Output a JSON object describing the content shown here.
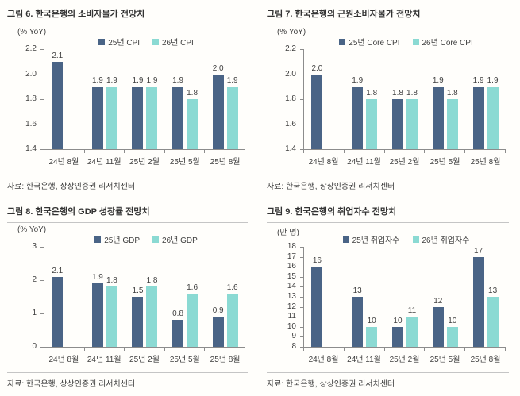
{
  "page": {
    "background": "#fffefb"
  },
  "colors": {
    "series_2025": "#4a6486",
    "series_2026": "#8bdad3",
    "axis": "#8c8c8c",
    "text": "#3f3f3f",
    "title_text": "#333333",
    "rule": "#c5c5c5"
  },
  "chart_data": [
    {
      "type": "bar",
      "figure_label": "그림 6. 한국은행의 소비자물가 전망치",
      "unit_label": "(% YoY)",
      "categories": [
        "24년 8월",
        "24년 11월",
        "25년 2월",
        "25년 5월",
        "25년 8월"
      ],
      "series": [
        {
          "name": "25년 CPI",
          "color": "#4a6486",
          "values": [
            2.1,
            1.9,
            1.9,
            1.9,
            2.0
          ],
          "labels": [
            "2.1",
            "1.9",
            "1.9",
            "1.9",
            "2.0"
          ]
        },
        {
          "name": "26년 CPI",
          "color": "#8bdad3",
          "values": [
            null,
            1.9,
            1.9,
            1.8,
            1.9
          ],
          "labels": [
            null,
            "1.9",
            "1.9",
            "1.8",
            "1.9"
          ]
        }
      ],
      "ylim": [
        1.4,
        2.2
      ],
      "yticks": [
        {
          "value": 2.2,
          "label": "2.2"
        },
        {
          "value": 2.0,
          "label": "2.0"
        },
        {
          "value": 1.8,
          "label": "1.8"
        },
        {
          "value": 1.6,
          "label": "1.6"
        },
        {
          "value": 1.4,
          "label": "1.4"
        }
      ],
      "grid": false,
      "legend_position": "top",
      "source": "자료: 한국은행, 상상인증권 리서치센터"
    },
    {
      "type": "bar",
      "figure_label": "그림 7. 한국은행의 근원소비자물가 전망치",
      "unit_label": "(% YoY)",
      "categories": [
        "24년 8월",
        "24년 11월",
        "25년 2월",
        "25년 5월",
        "25년 8월"
      ],
      "series": [
        {
          "name": "25년 Core CPI",
          "color": "#4a6486",
          "values": [
            2.0,
            1.9,
            1.8,
            1.9,
            1.9
          ],
          "labels": [
            "2.0",
            "1.9",
            "1.8",
            "1.9",
            "1.9"
          ]
        },
        {
          "name": "26년 Core CPI",
          "color": "#8bdad3",
          "values": [
            null,
            1.8,
            1.8,
            1.8,
            1.9
          ],
          "labels": [
            null,
            "1.8",
            "1.8",
            "1.8",
            "1.9"
          ]
        }
      ],
      "ylim": [
        1.4,
        2.2
      ],
      "yticks": [
        {
          "value": 2.2,
          "label": "2.2"
        },
        {
          "value": 2.0,
          "label": "2.0"
        },
        {
          "value": 1.8,
          "label": "1.8"
        },
        {
          "value": 1.6,
          "label": "1.6"
        },
        {
          "value": 1.4,
          "label": "1.4"
        }
      ],
      "grid": false,
      "legend_position": "top",
      "source": "자료: 한국은행, 상상인증권 리서치센터"
    },
    {
      "type": "bar",
      "figure_label": "그림 8. 한국은행의 GDP 성장률 전망치",
      "unit_label": "(% YoY)",
      "categories": [
        "24년 8월",
        "24년 11월",
        "25년 2월",
        "25년 5월",
        "25년 8월"
      ],
      "series": [
        {
          "name": "25년 GDP",
          "color": "#4a6486",
          "values": [
            2.1,
            1.9,
            1.5,
            0.8,
            0.9
          ],
          "labels": [
            "2.1",
            "1.9",
            "1.5",
            "0.8",
            "0.9"
          ]
        },
        {
          "name": "26년 GDP",
          "color": "#8bdad3",
          "values": [
            null,
            1.8,
            1.8,
            1.6,
            1.6
          ],
          "labels": [
            null,
            "1.8",
            "1.8",
            "1.6",
            "1.6"
          ]
        }
      ],
      "ylim": [
        0,
        3
      ],
      "yticks": [
        {
          "value": 3,
          "label": "3"
        },
        {
          "value": 2,
          "label": "2"
        },
        {
          "value": 1,
          "label": "1"
        },
        {
          "value": 0,
          "label": "0"
        }
      ],
      "grid": false,
      "legend_position": "top",
      "source": "자료: 한국은행, 상상인증권 리서치센터"
    },
    {
      "type": "bar",
      "figure_label": "그림 9. 한국은행의 취업자수 전망치",
      "unit_label": "(만 명)",
      "categories": [
        "24년 8월",
        "24년 11월",
        "25년 2월",
        "25년 5월",
        "25년 8월"
      ],
      "series": [
        {
          "name": "25년 취업자수",
          "color": "#4a6486",
          "values": [
            16,
            13,
            10,
            12,
            17
          ],
          "labels": [
            "16",
            "13",
            "10",
            "12",
            "17"
          ]
        },
        {
          "name": "26년 취업자수",
          "color": "#8bdad3",
          "values": [
            null,
            10,
            11,
            10,
            13
          ],
          "labels": [
            null,
            "10",
            "11",
            "10",
            "13"
          ]
        }
      ],
      "ylim": [
        8,
        18
      ],
      "yticks": [
        {
          "value": 18,
          "label": "18"
        },
        {
          "value": 17,
          "label": "17"
        },
        {
          "value": 16,
          "label": "16"
        },
        {
          "value": 15,
          "label": "15"
        },
        {
          "value": 14,
          "label": "14"
        },
        {
          "value": 13,
          "label": "13"
        },
        {
          "value": 12,
          "label": "12"
        },
        {
          "value": 11,
          "label": "11"
        },
        {
          "value": 10,
          "label": "10"
        },
        {
          "value": 9,
          "label": "9"
        },
        {
          "value": 8,
          "label": "8"
        }
      ],
      "grid": false,
      "legend_position": "top",
      "source": "자료: 한국은행, 상상인증권 리서치센터"
    }
  ]
}
